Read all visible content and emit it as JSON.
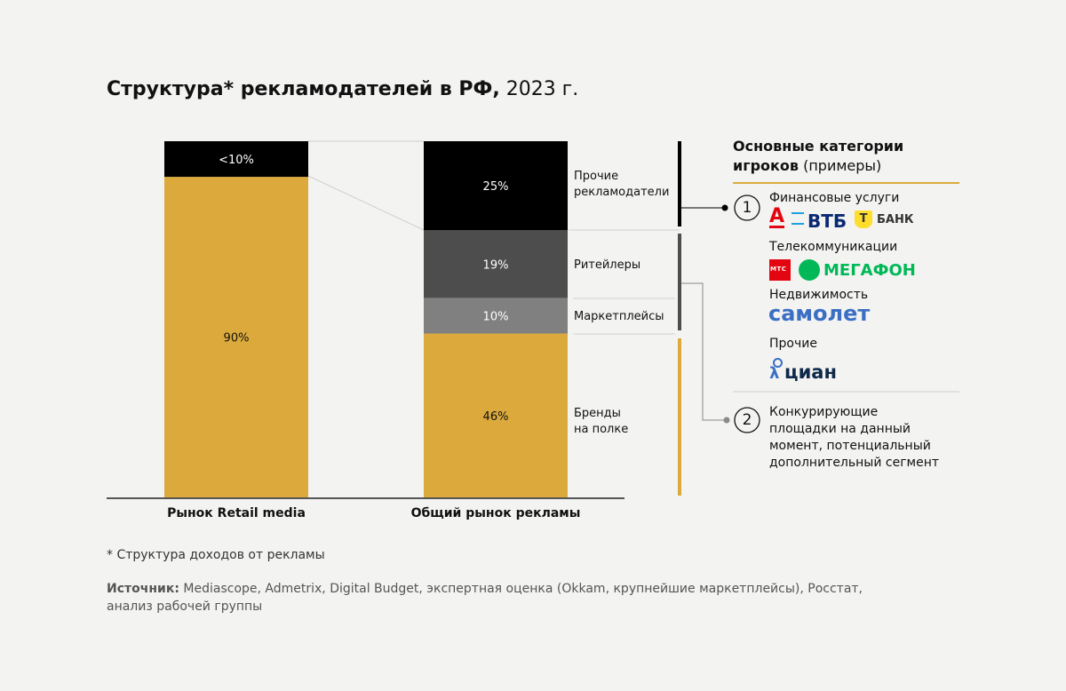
{
  "title_bold": "Структура* рекламодателей в РФ,",
  "title_rest": " 2023 г.",
  "chart_data": {
    "type": "bar",
    "stacked": true,
    "title": "Структура* рекламодателей в РФ, 2023 г.",
    "categories": [
      "Рынок Retail media",
      "Общий рынок рекламы"
    ],
    "series": [
      {
        "name": "Бренды на полке",
        "values": [
          90,
          46
        ],
        "labels": [
          "90%",
          "46%"
        ],
        "color": "#dcaa3c"
      },
      {
        "name": "Маркетплейсы",
        "values": [
          0,
          10
        ],
        "labels": [
          "",
          "10%"
        ],
        "color": "#808080"
      },
      {
        "name": "Ритейлеры",
        "values": [
          0,
          19
        ],
        "labels": [
          "",
          "19%"
        ],
        "color": "#4d4d4d"
      },
      {
        "name": "Прочие рекламодатели",
        "values": [
          10,
          25
        ],
        "labels": [
          "<10%",
          "25%"
        ],
        "color": "#000000"
      }
    ],
    "ylim": [
      0,
      100
    ],
    "grid": false
  },
  "segment_labels": {
    "other": [
      "Прочие",
      "рекламодатели"
    ],
    "retail": "Ритейлеры",
    "mp": "Маркетплейсы",
    "brands": [
      "Бренды",
      "на полке"
    ]
  },
  "panel": {
    "title_bold_1": "Основные категории",
    "title_bold_2": "игроков",
    "title_rest": " (примеры)",
    "marker1": "1",
    "marker2": "2",
    "groups": [
      {
        "label": "Финансовые услуги",
        "logos": [
          "А",
          "ВТБ",
          "Т",
          "БАНК"
        ]
      },
      {
        "label": "Телекоммуникации",
        "logos": [
          "МТС",
          "МЕГАФОН"
        ]
      },
      {
        "label": "Недвижимость",
        "logos": [
          "самолет"
        ]
      },
      {
        "label": "Прочие",
        "logos": [
          "циан"
        ]
      }
    ],
    "item2": [
      "Конкурирующие",
      "площадки на данный",
      "момент, потенциальный",
      "дополнительный сегмент"
    ]
  },
  "footnote": "* Структура доходов от рекламы",
  "source_label": "Источник:",
  "source_text": " Mediascope, Admetrix, Digital Budget, экспертная оценка (Okkam, крупнейшие маркетплейсы), Росстат,",
  "source_text2": "анализ рабочей группы",
  "colors": {
    "gold": "#dcaa3c",
    "black": "#000000",
    "dark": "#4d4d4d",
    "gray": "#808080",
    "mts": "#e30611",
    "megafon": "#00b956",
    "vtb": "#0a2973",
    "samolet": "#3a6fc4"
  }
}
